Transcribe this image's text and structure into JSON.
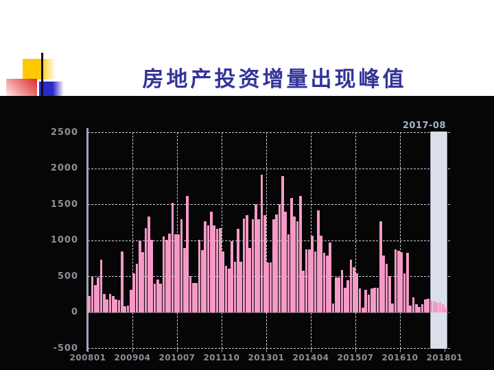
{
  "slide": {
    "title": "房地产投资增量出现峰值"
  },
  "chart_data": {
    "type": "bar",
    "title": "房地产投资增量出现峰值",
    "x_start": "2008-01",
    "x_tick_labels": [
      "200801",
      "200904",
      "201007",
      "201110",
      "201301",
      "201404",
      "201507",
      "201610",
      "201801"
    ],
    "y_tick_labels": [
      "2500",
      "2000",
      "1500",
      "1000",
      "500",
      "0",
      "-500"
    ],
    "ylim": [
      -500,
      2500
    ],
    "grid": "dashed",
    "annotation": "2017-08",
    "highlight_band": {
      "start": "2017-08",
      "end": "2018-01"
    },
    "values": [
      230,
      500,
      385,
      490,
      735,
      260,
      185,
      260,
      225,
      185,
      170,
      845,
      90,
      95,
      310,
      540,
      680,
      1000,
      840,
      1170,
      1335,
      1005,
      400,
      460,
      400,
      1060,
      1005,
      1090,
      1525,
      1080,
      1080,
      1295,
      895,
      1615,
      500,
      405,
      405,
      1005,
      865,
      1270,
      1210,
      1400,
      1210,
      1165,
      1175,
      850,
      645,
      610,
      990,
      700,
      1160,
      700,
      1305,
      1350,
      895,
      1290,
      1505,
      1290,
      1915,
      1350,
      695,
      695,
      1290,
      1360,
      1505,
      1890,
      1400,
      1080,
      1590,
      1330,
      1270,
      1615,
      580,
      880,
      880,
      1070,
      850,
      1420,
      1070,
      830,
      785,
      975,
      120,
      485,
      485,
      590,
      345,
      450,
      730,
      625,
      545,
      330,
      70,
      315,
      245,
      335,
      345,
      345,
      1265,
      790,
      675,
      500,
      125,
      880,
      855,
      835,
      545,
      830,
      95,
      210,
      115,
      75,
      115,
      185,
      195,
      160
    ],
    "forecast_values": [
      150,
      135,
      140,
      110,
      60
    ],
    "colors": {
      "bar": "#f59ac6",
      "background": "#060606",
      "axis": "#9ca7ba",
      "gridline": "#ced3db",
      "tick_labels": "#8a8f99",
      "annotation": "#a7b2c9",
      "band_fill": "#dadfea",
      "title": "#333399"
    }
  }
}
